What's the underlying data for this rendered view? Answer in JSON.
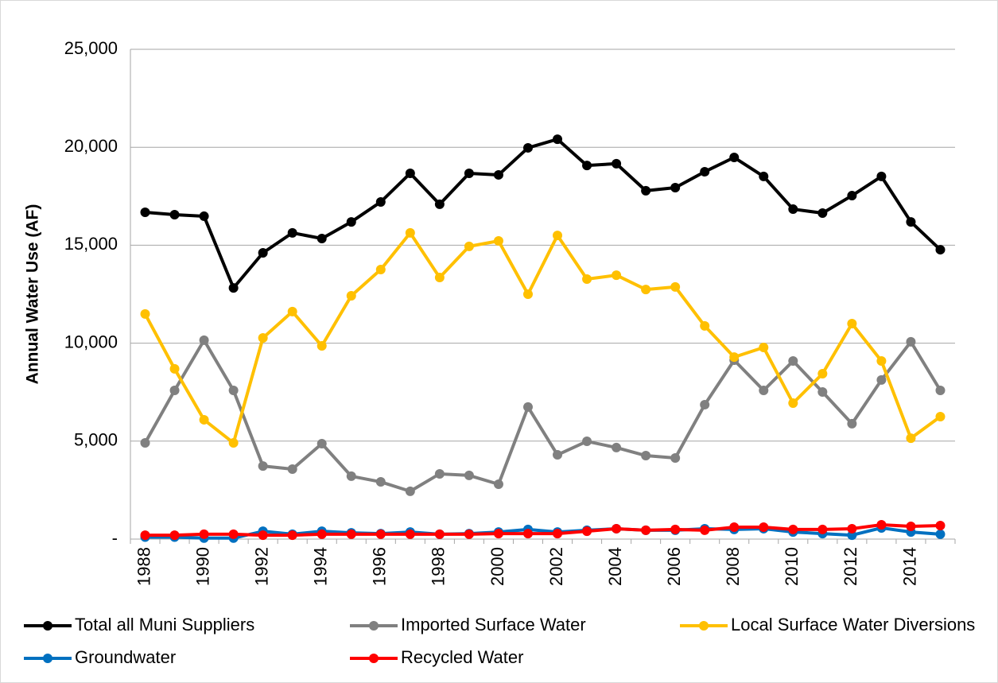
{
  "chart_data": {
    "type": "line",
    "y_label": "Annual Water Use (AF)",
    "categories": [
      "1988",
      null,
      "1990",
      null,
      "1992",
      null,
      "1994",
      null,
      "1996",
      null,
      "1998",
      null,
      "2000",
      null,
      "2002",
      null,
      "2004",
      null,
      "2006",
      null,
      "2008",
      null,
      "2010",
      null,
      "2012",
      null,
      "2014",
      null
    ],
    "ylim": [
      0,
      25000
    ],
    "yticks": [
      {
        "value": 0,
        "label": "-"
      },
      {
        "value": 5000,
        "label": "5,000"
      },
      {
        "value": 10000,
        "label": "10,000"
      },
      {
        "value": 15000,
        "label": "15,000"
      },
      {
        "value": 20000,
        "label": "20,000"
      },
      {
        "value": 25000,
        "label": "25,000"
      }
    ],
    "grid": true,
    "legend": "bottom",
    "series": [
      {
        "name": "Total all Muni Suppliers",
        "color": "#000000",
        "values": [
          16680,
          16560,
          16480,
          12820,
          14610,
          15630,
          15340,
          16190,
          17210,
          18670,
          17090,
          18670,
          18590,
          19970,
          20410,
          19070,
          19160,
          17780,
          17940,
          18750,
          19480,
          18510,
          16840,
          16640,
          17530,
          18510,
          16190,
          14770
        ]
      },
      {
        "name": "Imported Surface Water",
        "color": "#808080",
        "values": [
          4910,
          7590,
          10150,
          7590,
          3730,
          3570,
          4870,
          3210,
          2920,
          2440,
          3330,
          3250,
          2800,
          6740,
          4300,
          4990,
          4670,
          4260,
          4140,
          6860,
          9130,
          7590,
          9090,
          7510,
          5890,
          8120,
          10070,
          7590
        ]
      },
      {
        "name": "Local Surface Water Diversions",
        "color": "#ffc000",
        "values": [
          11490,
          8690,
          6090,
          4910,
          10270,
          11610,
          9860,
          12420,
          13760,
          15630,
          13350,
          14940,
          15220,
          12500,
          15500,
          13270,
          13470,
          12740,
          12870,
          10880,
          9290,
          9780,
          6940,
          8440,
          11000,
          9090,
          5150,
          6250
        ]
      },
      {
        "name": "Groundwater",
        "color": "#0070c0",
        "values": [
          100,
          100,
          50,
          50,
          400,
          250,
          400,
          320,
          280,
          360,
          250,
          280,
          360,
          490,
          360,
          450,
          530,
          450,
          450,
          530,
          490,
          530,
          360,
          280,
          200,
          570,
          360,
          250
        ]
      },
      {
        "name": "Recycled Water",
        "color": "#ff0000",
        "values": [
          200,
          200,
          250,
          250,
          200,
          200,
          250,
          250,
          250,
          250,
          250,
          250,
          280,
          280,
          280,
          400,
          530,
          450,
          490,
          450,
          610,
          610,
          490,
          490,
          530,
          730,
          650,
          690
        ]
      }
    ]
  }
}
